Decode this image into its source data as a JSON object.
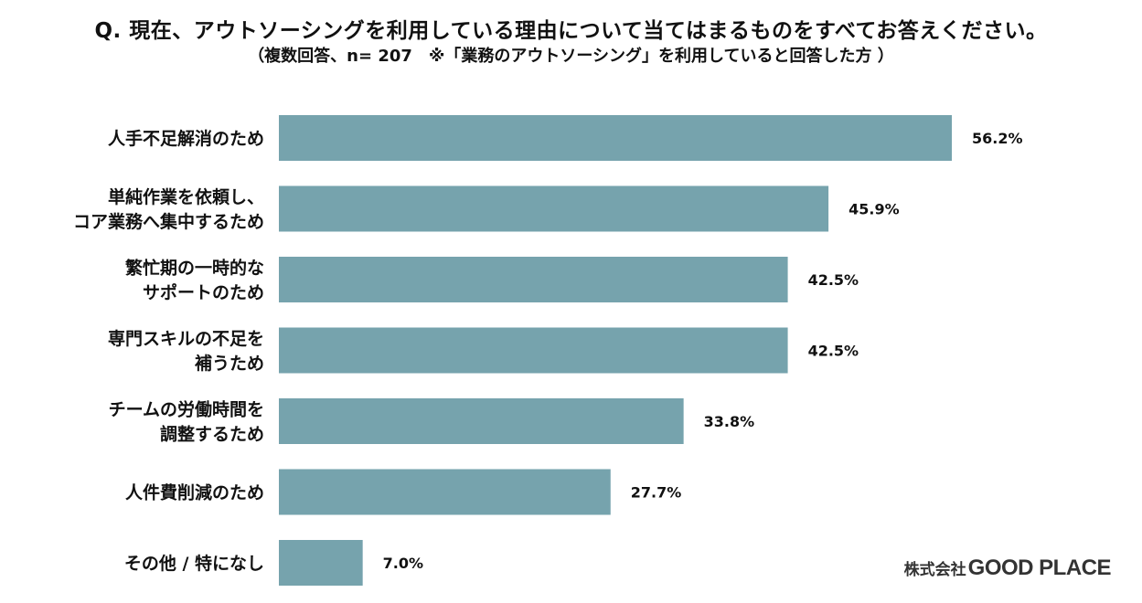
{
  "title": "Q. 現在、アウトソーシングを利用している理由について当てはまるものをすべてお答えください。",
  "subtitle": "（複数回答、n= 207　※「業務のアウトソーシング」を利用していると回答した方 ）",
  "logo": {
    "prefix": "株式会社",
    "name": "GOOD PLACE"
  },
  "colors": {
    "bar": "#76a3ad",
    "text": "#111111"
  },
  "chart_data": {
    "type": "bar",
    "orientation": "horizontal",
    "categories": [
      [
        "人手不足解消のため"
      ],
      [
        "単純作業を依頼し、",
        "コア業務へ集中するため"
      ],
      [
        "繁忙期の一時的な",
        "サポートのため"
      ],
      [
        "専門スキルの不足を",
        "補うため"
      ],
      [
        "チームの労働時間を",
        "調整するため"
      ],
      [
        "人件費削減のため"
      ],
      [
        "その他 / 特になし"
      ]
    ],
    "values": [
      56.2,
      45.9,
      42.5,
      42.5,
      33.8,
      27.7,
      7.0
    ],
    "value_labels": [
      "56.2%",
      "45.9%",
      "42.5%",
      "42.5%",
      "33.8%",
      "27.7%",
      "7.0%"
    ],
    "unit": "%",
    "xlim": [
      0,
      100
    ],
    "grid": false,
    "legend": "none"
  }
}
